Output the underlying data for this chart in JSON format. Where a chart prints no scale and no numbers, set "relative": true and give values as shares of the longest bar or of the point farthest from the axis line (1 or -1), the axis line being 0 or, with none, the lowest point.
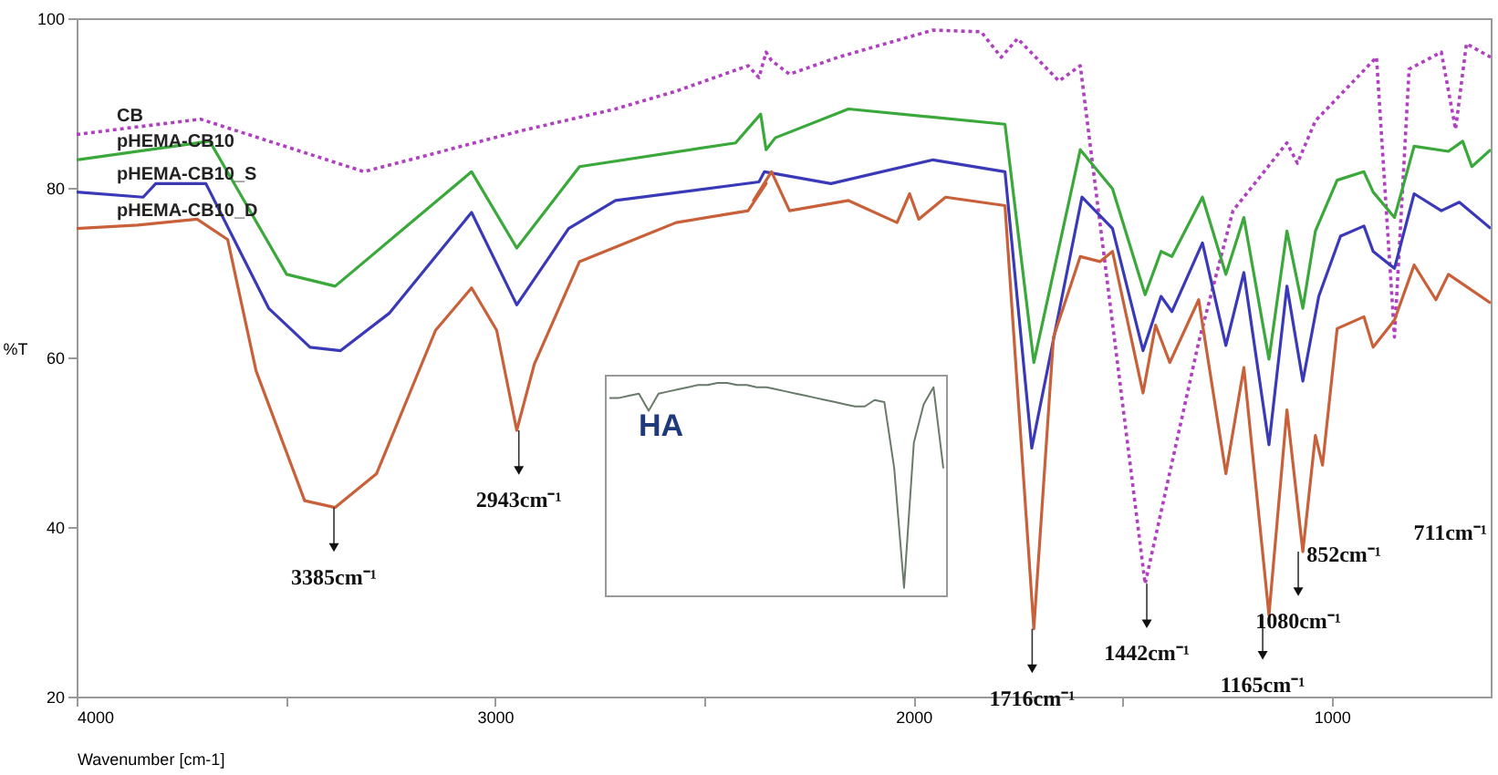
{
  "chart_data": [
    {
      "type": "line",
      "xlabel": "Wavenumber [cm-1]",
      "ylabel": "%T",
      "xlim": [
        4000,
        620
      ],
      "ylim": [
        20,
        100
      ],
      "xticks": [
        4000,
        {
          "value": 3500,
          "label": null
        },
        3000,
        {
          "value": 2500,
          "label": null
        },
        2000,
        {
          "value": 1500,
          "label": null
        },
        1000
      ],
      "yticks": [
        20,
        40,
        60,
        80,
        100
      ],
      "series": [
        {
          "name": "CB",
          "color": "#b040c0",
          "line_style": "dotted",
          "x": [
            4000,
            3704,
            3313,
            2940,
            2712,
            2567,
            2395,
            2369,
            2352,
            2339,
            2296,
            2180,
            1953,
            1838,
            1790,
            1751,
            1652,
            1601,
            1446,
            1318,
            1236,
            1107,
            1082,
            1039,
            893,
            850,
            815,
            738,
            704,
            678,
            620
          ],
          "values": [
            86.3,
            88.1,
            81.9,
            86.7,
            89.3,
            91.4,
            94.4,
            93,
            96,
            95,
            93.4,
            95.4,
            98.6,
            98.4,
            95.4,
            97.6,
            92.6,
            94.4,
            33.3,
            61.8,
            77.3,
            85.3,
            82.9,
            87.9,
            95.4,
            62.4,
            94,
            96,
            86.9,
            97,
            95.4
          ]
        },
        {
          "name": "pHEMA-CB10",
          "color": "#3aa83a",
          "line_style": "solid",
          "x": [
            4000,
            3682,
            3498,
            3382,
            3056,
            2948,
            2798,
            2425,
            2365,
            2352,
            2330,
            2155,
            1781,
            1712,
            1601,
            1524,
            1446,
            1408,
            1382,
            1309,
            1253,
            1210,
            1150,
            1107,
            1069,
            1039,
            987,
            923,
            901,
            850,
            803,
            721,
            687,
            665,
            620
          ],
          "values": [
            83.3,
            85.5,
            69.8,
            68.4,
            81.9,
            72.9,
            82.5,
            85.3,
            88.7,
            84.5,
            85.9,
            89.3,
            87.5,
            59.4,
            84.5,
            79.9,
            67.4,
            72.5,
            71.9,
            78.9,
            69.8,
            76.5,
            59.8,
            74.9,
            65.8,
            74.9,
            80.9,
            81.9,
            79.5,
            76.5,
            84.9,
            84.3,
            85.5,
            82.5,
            84.5
          ]
        },
        {
          "name": "pHEMA-CB10_S",
          "color": "#3a3ab8",
          "line_style": "solid",
          "x": [
            4000,
            3841,
            3811,
            3691,
            3541,
            3442,
            3369,
            3253,
            3056,
            2948,
            2824,
            2712,
            2369,
            2356,
            2197,
            1953,
            1781,
            1717,
            1597,
            1524,
            1451,
            1408,
            1382,
            1309,
            1253,
            1210,
            1150,
            1107,
            1069,
            1031,
            979,
            923,
            901,
            850,
            803,
            738,
            695,
            620
          ],
          "values": [
            79.5,
            78.9,
            80.5,
            80.5,
            65.8,
            61.2,
            60.8,
            65.2,
            77.1,
            66.2,
            75.2,
            78.5,
            80.7,
            81.9,
            80.5,
            83.3,
            81.9,
            49.3,
            78.9,
            75.2,
            60.8,
            67.2,
            65.4,
            73.5,
            61.4,
            70,
            49.7,
            68.4,
            57.2,
            67.2,
            74.3,
            75.5,
            72.5,
            70.5,
            79.3,
            77.3,
            78.3,
            75.2
          ]
        },
        {
          "name": "pHEMA-CB10_D",
          "color": "#c8603a",
          "line_style": "solid",
          "x": [
            4000,
            3854,
            3712,
            3639,
            3571,
            3455,
            3382,
            3283,
            3142,
            3056,
            2996,
            2948,
            2906,
            2798,
            2567,
            2395,
            2352,
            2382,
            2339,
            2296,
            2155,
            2039,
            2009,
            1987,
            1923,
            1781,
            1712,
            1665,
            1601,
            1554,
            1524,
            1451,
            1421,
            1387,
            1318,
            1253,
            1210,
            1150,
            1107,
            1069,
            1039,
            1022,
            987,
            923,
            901,
            850,
            803,
            751,
            721,
            620
          ],
          "values": [
            75.2,
            75.6,
            76.3,
            73.9,
            58.4,
            43.1,
            42.3,
            46.3,
            63.2,
            68.2,
            63.2,
            51.4,
            59.2,
            71.3,
            75.9,
            77.3,
            80.5,
            78.5,
            81.9,
            77.3,
            78.5,
            75.9,
            79.3,
            76.3,
            78.9,
            77.9,
            28.0,
            62.4,
            71.9,
            71.3,
            72.5,
            55.8,
            63.8,
            59.4,
            66.8,
            46.3,
            58.8,
            29.6,
            53.8,
            37.1,
            50.8,
            47.3,
            63.4,
            64.8,
            61.2,
            64.4,
            70.9,
            66.8,
            69.8,
            66.4
          ]
        }
      ],
      "annotations": [
        {
          "text": "3385cm⁻¹",
          "x": 3385,
          "y": 42.3
        },
        {
          "text": "2943cm⁻¹",
          "x": 2943,
          "y": 51.4
        },
        {
          "text": "1716cm⁻¹",
          "x": 1716,
          "y": 28.0
        },
        {
          "text": "1442cm⁻¹",
          "x": 1442,
          "y": 33.3
        },
        {
          "text": "1165cm⁻¹",
          "x": 1165,
          "y": 29.6
        },
        {
          "text": "1080cm⁻¹",
          "x": 1080,
          "y": 37.1
        },
        "852cm⁻¹",
        "711cm⁻¹"
      ]
    },
    {
      "type": "line",
      "title": "HA",
      "relative": true,
      "color": "#6a7a6a",
      "categories": [
        null,
        null,
        null,
        null,
        null,
        null,
        null,
        null,
        null,
        null,
        null,
        null,
        null,
        null,
        null,
        null,
        null,
        null,
        null,
        null,
        null,
        null,
        null,
        null,
        null,
        null,
        null,
        null,
        null,
        null,
        null,
        null,
        null,
        null,
        null
      ],
      "values": [
        0.93,
        0.93,
        0.94,
        0.95,
        0.87,
        0.95,
        0.96,
        0.97,
        0.98,
        0.99,
        0.99,
        1,
        1,
        0.99,
        0.99,
        0.98,
        0.98,
        0.97,
        0.96,
        0.95,
        0.94,
        0.93,
        0.92,
        0.91,
        0.9,
        0.89,
        0.89,
        0.92,
        0.91,
        0.6,
        0.04,
        0.72,
        0.9,
        0.98,
        0.6
      ]
    }
  ]
}
